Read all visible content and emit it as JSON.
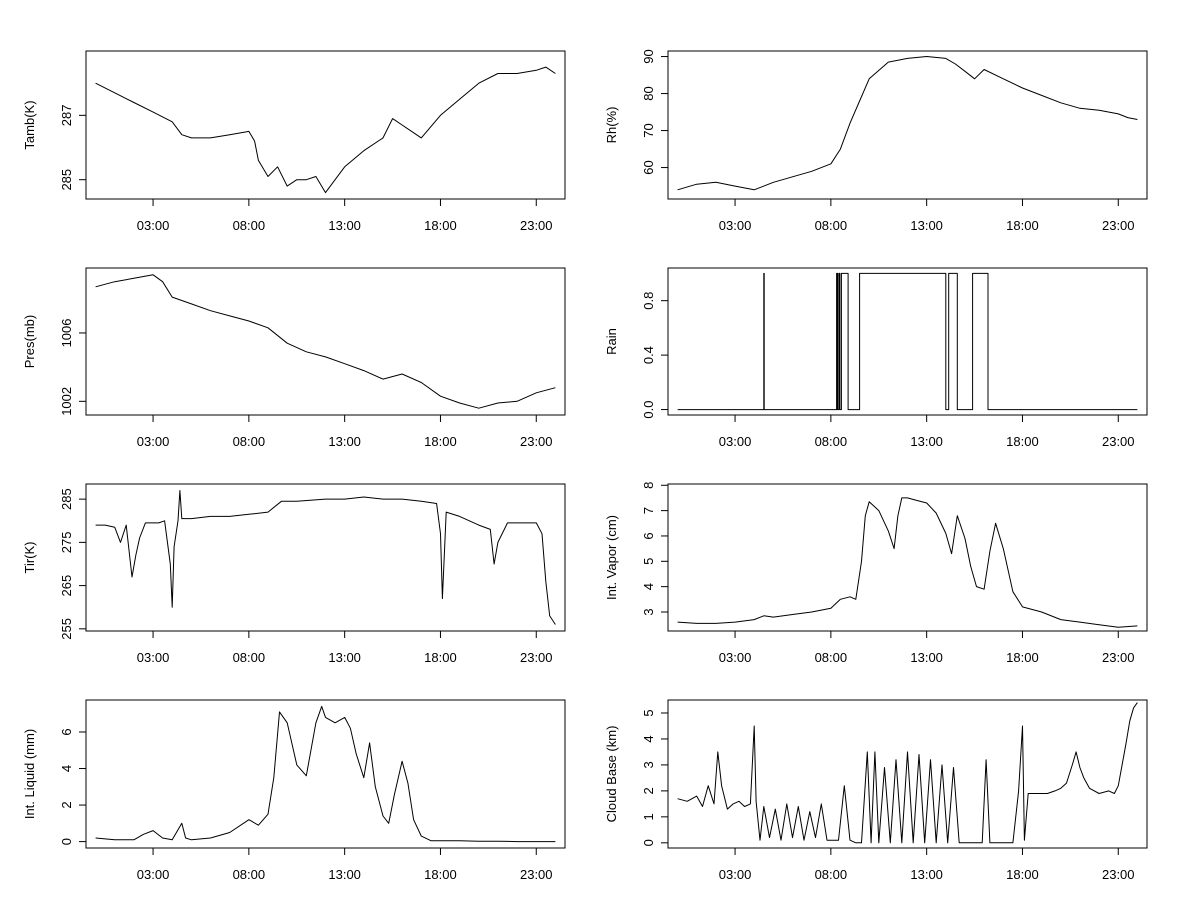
{
  "chart_data": [
    {
      "type": "line",
      "ylabel": "Tamb(K)",
      "x_tick_labels": [
        "03:00",
        "08:00",
        "13:00",
        "18:00",
        "23:00"
      ],
      "x_ticks": [
        3,
        8,
        13,
        18,
        23
      ],
      "xlim": [
        -0.5,
        24.5
      ],
      "ylim": [
        284.4,
        289.0
      ],
      "y_ticks": [
        285,
        287
      ],
      "y_tick_labels": [
        "285",
        "287"
      ],
      "x": [
        0,
        1,
        2,
        3,
        4,
        4.5,
        5,
        6,
        7,
        8,
        8.3,
        8.5,
        9,
        9.5,
        10,
        10.5,
        11,
        11.5,
        12,
        12.5,
        13,
        14,
        15,
        15.5,
        16,
        17,
        18,
        19,
        20,
        21,
        22,
        23,
        23.5,
        24
      ],
      "y": [
        288.0,
        287.7,
        287.4,
        287.1,
        286.8,
        286.4,
        286.3,
        286.3,
        286.4,
        286.5,
        286.2,
        285.6,
        285.1,
        285.4,
        284.8,
        285.0,
        285.0,
        285.1,
        284.6,
        285.0,
        285.4,
        285.9,
        286.3,
        286.9,
        286.7,
        286.3,
        287.0,
        287.5,
        288.0,
        288.3,
        288.3,
        288.4,
        288.5,
        288.3
      ]
    },
    {
      "type": "line",
      "ylabel": "Rh(%)",
      "x_tick_labels": [
        "03:00",
        "08:00",
        "13:00",
        "18:00",
        "23:00"
      ],
      "x_ticks": [
        3,
        8,
        13,
        18,
        23
      ],
      "xlim": [
        -0.5,
        24.5
      ],
      "ylim": [
        51.5,
        91.5
      ],
      "y_ticks": [
        60,
        70,
        80,
        90
      ],
      "y_tick_labels": [
        "60",
        "70",
        "80",
        "90"
      ],
      "x": [
        0,
        1,
        2,
        3,
        4,
        5,
        6,
        7,
        8,
        8.5,
        9,
        9.5,
        10,
        11,
        12,
        13,
        14,
        14.5,
        15,
        15.5,
        16,
        17,
        18,
        19,
        20,
        21,
        22,
        23,
        23.5,
        24
      ],
      "y": [
        54,
        55.5,
        56,
        55,
        54,
        56,
        57.5,
        59,
        61,
        65,
        72,
        78,
        84,
        88.5,
        89.5,
        90,
        89.5,
        88,
        86,
        84,
        86.5,
        84,
        81.5,
        79.5,
        77.5,
        76,
        75.5,
        74.5,
        73.5,
        73
      ]
    },
    {
      "type": "line",
      "ylabel": "Pres(mb)",
      "x_tick_labels": [
        "03:00",
        "08:00",
        "13:00",
        "18:00",
        "23:00"
      ],
      "x_ticks": [
        3,
        8,
        13,
        18,
        23
      ],
      "xlim": [
        -0.5,
        24.5
      ],
      "ylim": [
        1001.2,
        1009.8
      ],
      "y_ticks": [
        1002,
        1006
      ],
      "y_tick_labels": [
        "1002",
        "1006"
      ],
      "x": [
        0,
        1,
        2,
        3,
        3.5,
        4,
        5,
        6,
        7,
        8,
        9,
        10,
        11,
        12,
        13,
        14,
        15,
        16,
        17,
        18,
        19,
        20,
        21,
        22,
        23,
        24
      ],
      "y": [
        1008.7,
        1009.0,
        1009.2,
        1009.4,
        1009.0,
        1008.1,
        1007.7,
        1007.3,
        1007.0,
        1006.7,
        1006.3,
        1005.4,
        1004.9,
        1004.6,
        1004.2,
        1003.8,
        1003.3,
        1003.6,
        1003.1,
        1002.3,
        1001.9,
        1001.6,
        1001.9,
        1002.0,
        1002.5,
        1002.8
      ]
    },
    {
      "type": "line",
      "ylabel": "Rain",
      "x_tick_labels": [
        "03:00",
        "08:00",
        "13:00",
        "18:00",
        "23:00"
      ],
      "x_ticks": [
        3,
        8,
        13,
        18,
        23
      ],
      "xlim": [
        -0.5,
        24.5
      ],
      "ylim": [
        -0.04,
        1.04
      ],
      "y_ticks": [
        0.0,
        0.4,
        0.8
      ],
      "y_tick_labels": [
        "0.0",
        "0.4",
        "0.8"
      ],
      "x": [
        0,
        4.5,
        4.5,
        4.52,
        4.52,
        8.3,
        8.3,
        8.35,
        8.35,
        8.42,
        8.42,
        8.47,
        8.47,
        8.55,
        8.55,
        8.9,
        8.9,
        9.5,
        9.5,
        14.0,
        14.0,
        14.15,
        14.15,
        14.6,
        14.6,
        15.4,
        15.4,
        16.2,
        16.2,
        24
      ],
      "y": [
        0,
        0,
        1,
        1,
        0,
        0,
        1,
        1,
        0,
        0,
        1,
        1,
        0,
        0,
        1,
        1,
        0,
        0,
        1,
        1,
        0,
        0,
        1,
        1,
        0,
        0,
        1,
        1,
        0,
        0
      ]
    },
    {
      "type": "line",
      "ylabel": "Tir(K)",
      "x_tick_labels": [
        "03:00",
        "08:00",
        "13:00",
        "18:00",
        "23:00"
      ],
      "x_ticks": [
        3,
        8,
        13,
        18,
        23
      ],
      "xlim": [
        -0.5,
        24.5
      ],
      "ylim": [
        254.5,
        288.5
      ],
      "y_ticks": [
        255,
        265,
        275,
        285
      ],
      "y_tick_labels": [
        "255",
        "265",
        "275",
        "285"
      ],
      "x": [
        0,
        0.5,
        1.0,
        1.3,
        1.6,
        1.9,
        2.1,
        2.3,
        2.6,
        3.0,
        3.3,
        3.6,
        3.9,
        4.0,
        4.1,
        4.3,
        4.4,
        4.5,
        5.0,
        6.0,
        7.0,
        8.0,
        9.0,
        9.7,
        10.5,
        12,
        13,
        14,
        15,
        16,
        17,
        17.8,
        18.0,
        18.1,
        18.3,
        19,
        20,
        20.6,
        20.8,
        21.0,
        21.5,
        22,
        22.5,
        23.0,
        23.3,
        23.5,
        23.7,
        24.0
      ],
      "y": [
        279,
        279,
        278.5,
        275,
        279,
        267,
        272,
        276,
        279.5,
        279.5,
        279.5,
        280,
        270,
        260,
        274,
        280,
        287,
        280.5,
        280.5,
        281,
        281,
        281.5,
        282,
        284.5,
        284.5,
        285,
        285,
        285.5,
        285,
        285,
        284.5,
        284,
        277,
        262,
        282,
        281,
        279,
        278,
        270,
        275,
        279.5,
        279.5,
        279.5,
        279.5,
        277,
        266,
        258,
        256
      ]
    },
    {
      "type": "line",
      "ylabel": "Int. Vapor (cm)",
      "x_tick_labels": [
        "03:00",
        "08:00",
        "13:00",
        "18:00",
        "23:00"
      ],
      "x_ticks": [
        3,
        8,
        13,
        18,
        23
      ],
      "xlim": [
        -0.5,
        24.5
      ],
      "ylim": [
        2.25,
        8.05
      ],
      "y_ticks": [
        3,
        4,
        5,
        6,
        7,
        8
      ],
      "y_tick_labels": [
        "3",
        "4",
        "5",
        "6",
        "7",
        "8"
      ],
      "x": [
        0,
        1,
        2,
        3,
        4,
        4.5,
        5,
        6,
        7,
        8,
        8.5,
        9,
        9.3,
        9.6,
        9.8,
        10,
        10.5,
        11,
        11.3,
        11.5,
        11.7,
        12,
        12.5,
        13,
        13.5,
        14,
        14.3,
        14.6,
        15,
        15.3,
        15.6,
        16,
        16.3,
        16.6,
        17,
        17.5,
        18,
        19,
        20,
        21,
        22,
        23,
        24
      ],
      "y": [
        2.6,
        2.55,
        2.55,
        2.6,
        2.7,
        2.85,
        2.8,
        2.9,
        3.0,
        3.15,
        3.5,
        3.6,
        3.5,
        5.0,
        6.8,
        7.35,
        7.0,
        6.2,
        5.5,
        6.8,
        7.5,
        7.5,
        7.4,
        7.3,
        6.9,
        6.1,
        5.3,
        6.8,
        5.9,
        4.8,
        4.0,
        3.9,
        5.4,
        6.5,
        5.5,
        3.8,
        3.2,
        3.0,
        2.7,
        2.6,
        2.5,
        2.4,
        2.45
      ]
    },
    {
      "type": "line",
      "ylabel": "Int. Liquid (mm)",
      "x_tick_labels": [
        "03:00",
        "08:00",
        "13:00",
        "18:00",
        "23:00"
      ],
      "x_ticks": [
        3,
        8,
        13,
        18,
        23
      ],
      "xlim": [
        -0.5,
        24.5
      ],
      "ylim": [
        -0.35,
        7.75
      ],
      "y_ticks": [
        0,
        2,
        4,
        6
      ],
      "y_tick_labels": [
        "0",
        "2",
        "4",
        "6"
      ],
      "x": [
        0,
        1,
        2,
        2.5,
        3,
        3.5,
        4,
        4.5,
        4.7,
        5,
        6,
        7,
        8,
        8.5,
        9,
        9.3,
        9.6,
        10,
        10.5,
        11,
        11.5,
        11.8,
        12,
        12.5,
        13,
        13.3,
        13.6,
        14,
        14.3,
        14.6,
        15,
        15.3,
        15.6,
        16,
        16.3,
        16.6,
        17,
        17.5,
        18,
        19,
        20,
        21,
        22,
        23,
        24
      ],
      "y": [
        0.2,
        0.1,
        0.1,
        0.4,
        0.6,
        0.2,
        0.1,
        1.0,
        0.2,
        0.1,
        0.2,
        0.5,
        1.2,
        0.9,
        1.5,
        3.5,
        7.1,
        6.5,
        4.2,
        3.6,
        6.5,
        7.4,
        6.8,
        6.5,
        6.8,
        6.2,
        4.8,
        3.5,
        5.4,
        3.0,
        1.4,
        1.0,
        2.6,
        4.4,
        3.2,
        1.2,
        0.3,
        0.05,
        0.05,
        0.05,
        0.02,
        0.02,
        0.0,
        0.0,
        0.0
      ]
    },
    {
      "type": "line",
      "ylabel": "Cloud Base (km)",
      "x_tick_labels": [
        "03:00",
        "08:00",
        "13:00",
        "18:00",
        "23:00"
      ],
      "x_ticks": [
        3,
        8,
        13,
        18,
        23
      ],
      "xlim": [
        -0.5,
        24.5
      ],
      "ylim": [
        -0.2,
        5.5
      ],
      "y_ticks": [
        0,
        1,
        2,
        3,
        4,
        5
      ],
      "y_tick_labels": [
        "0",
        "1",
        "2",
        "3",
        "4",
        "5"
      ],
      "x": [
        0,
        0.5,
        1.0,
        1.3,
        1.6,
        1.9,
        2.1,
        2.3,
        2.6,
        2.9,
        3.2,
        3.5,
        3.8,
        4.0,
        4.1,
        4.3,
        4.5,
        4.8,
        5.1,
        5.4,
        5.7,
        6.0,
        6.3,
        6.6,
        6.9,
        7.2,
        7.5,
        7.8,
        8.1,
        8.4,
        8.7,
        9.0,
        9.3,
        9.6,
        9.9,
        10.1,
        10.3,
        10.5,
        10.8,
        11.1,
        11.4,
        11.7,
        12.0,
        12.3,
        12.6,
        12.9,
        13.2,
        13.5,
        13.8,
        14.1,
        14.4,
        14.7,
        15.0,
        15.3,
        15.6,
        15.9,
        16.1,
        16.3,
        16.6,
        16.9,
        17.2,
        17.5,
        17.8,
        18.0,
        18.1,
        18.3,
        18.6,
        18.9,
        19.3,
        19.7,
        20.0,
        20.3,
        20.6,
        20.8,
        21.0,
        21.2,
        21.5,
        22.0,
        22.5,
        22.8,
        23.0,
        23.2,
        23.4,
        23.6,
        23.8,
        24.0
      ],
      "y": [
        1.7,
        1.6,
        1.8,
        1.4,
        2.2,
        1.5,
        3.5,
        2.2,
        1.3,
        1.5,
        1.6,
        1.4,
        1.5,
        4.5,
        1.6,
        0.1,
        1.4,
        0.2,
        1.3,
        0.1,
        1.5,
        0.2,
        1.4,
        0.1,
        1.2,
        0.2,
        1.5,
        0.1,
        0.1,
        0.1,
        2.2,
        0.1,
        0.0,
        0.0,
        3.5,
        0.0,
        3.5,
        0.0,
        2.9,
        0.0,
        3.2,
        0.0,
        3.5,
        0.0,
        3.4,
        0.0,
        3.2,
        0.0,
        3.0,
        0.0,
        2.9,
        0.0,
        0.0,
        0.0,
        0.0,
        0.0,
        3.2,
        0.0,
        0.0,
        0.0,
        0.0,
        0.0,
        2.0,
        4.5,
        0.1,
        1.9,
        1.9,
        1.9,
        1.9,
        2.0,
        2.1,
        2.3,
        3.0,
        3.5,
        2.9,
        2.5,
        2.1,
        1.9,
        2.0,
        1.9,
        2.2,
        3.0,
        3.8,
        4.7,
        5.2,
        5.4
      ]
    }
  ]
}
